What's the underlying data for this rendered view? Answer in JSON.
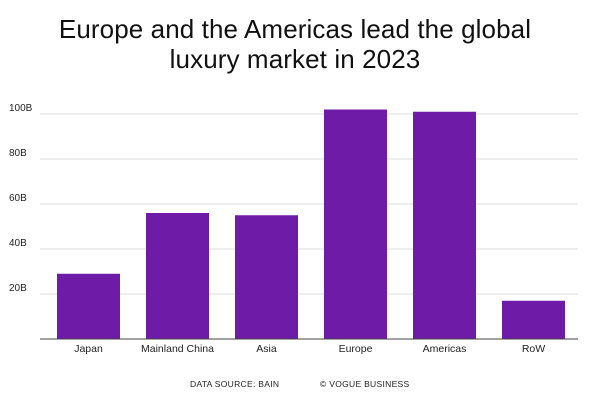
{
  "title_lines": [
    "Europe and the Americas lead the global",
    "luxury market in 2023"
  ],
  "footer": {
    "source": "DATA SOURCE: BAIN",
    "credit": "© VOGUE BUSINESS"
  },
  "chart_data": {
    "type": "bar",
    "title": "Europe and the Americas lead the global luxury market in 2023",
    "categories": [
      "Japan",
      "Mainland China",
      "Asia",
      "Europe",
      "Americas",
      "RoW"
    ],
    "values": [
      29,
      56,
      55,
      102,
      101,
      17
    ],
    "ylim": [
      0,
      100
    ],
    "yticks": [
      20,
      40,
      60,
      80,
      100
    ],
    "ytick_labels": [
      "20B",
      "40B",
      "60B",
      "80B",
      "100B"
    ],
    "xlabel": "",
    "ylabel": "",
    "grid": true,
    "bar_color": "#6e1ba8",
    "grid_color": "#dcdcdc",
    "axis_color": "#444444"
  }
}
